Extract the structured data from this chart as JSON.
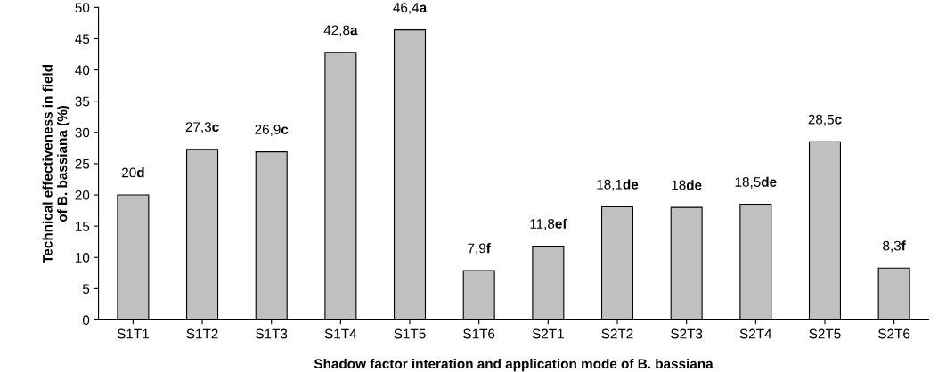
{
  "chart_data": {
    "type": "bar",
    "xlabel": "Shadow factor interation and application mode of B. bassiana",
    "ylabel": "Technical effectiveness in field\nof B. bassiana (%)",
    "categories": [
      "S1T1",
      "S1T2",
      "S1T3",
      "S1T4",
      "S1T5",
      "S1T6",
      "S2T1",
      "S2T2",
      "S2T3",
      "S2T4",
      "S2T5",
      "S2T6"
    ],
    "values": [
      20,
      27.3,
      26.9,
      42.8,
      46.4,
      7.9,
      11.8,
      18.1,
      18,
      18.5,
      28.5,
      8.3
    ],
    "value_labels": [
      "20d",
      "27,3c",
      "26,9c",
      "42,8a",
      "46,4a",
      "7,9f",
      "11,8ef",
      "18,1de",
      "18de",
      "18,5de",
      "28,5c",
      "8,3f"
    ],
    "color": "#c0c0c0",
    "ylim": [
      0,
      50
    ],
    "yticks": [
      0,
      5,
      10,
      15,
      20,
      25,
      30,
      35,
      40,
      45,
      50
    ],
    "grid": false,
    "legend": false
  }
}
